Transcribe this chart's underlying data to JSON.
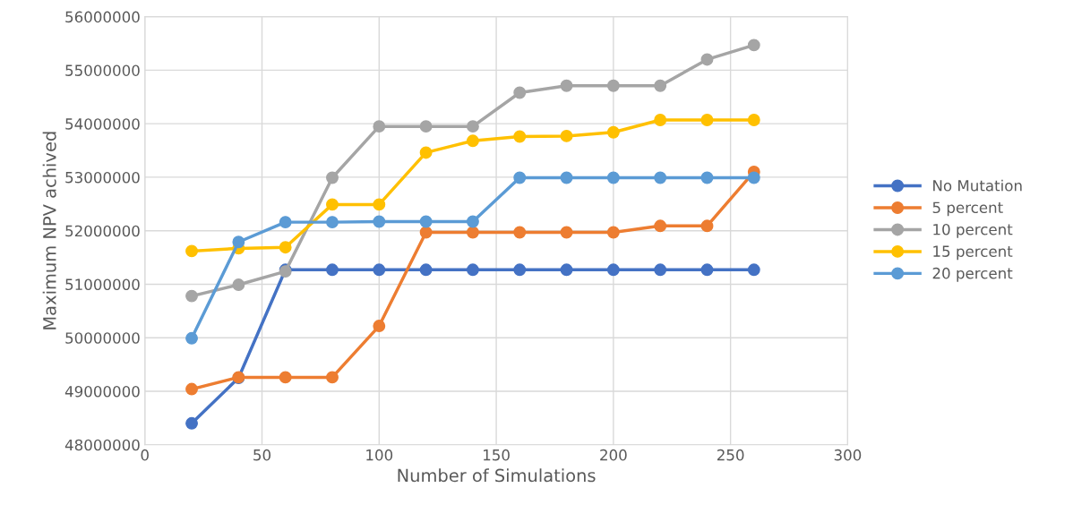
{
  "chart_data": {
    "type": "line",
    "xlabel": "Number of Simulations",
    "ylabel": "Maximum NPV achived",
    "x": [
      20,
      40,
      60,
      80,
      100,
      120,
      140,
      160,
      180,
      200,
      220,
      240,
      260
    ],
    "series": [
      {
        "name": "No Mutation",
        "color": "#4472c4",
        "values": [
          48400000,
          49250000,
          51270000,
          51270000,
          51270000,
          51270000,
          51270000,
          51270000,
          51270000,
          51270000,
          51270000,
          51270000,
          51270000
        ]
      },
      {
        "name": "5 percent",
        "color": "#ed7d31",
        "values": [
          49040000,
          49260000,
          49260000,
          49260000,
          50220000,
          51970000,
          51970000,
          51970000,
          51970000,
          51970000,
          52090000,
          52090000,
          53100000
        ]
      },
      {
        "name": "10 percent",
        "color": "#a5a5a5",
        "values": [
          50780000,
          50990000,
          51240000,
          52990000,
          53950000,
          53950000,
          53950000,
          54580000,
          54710000,
          54710000,
          54710000,
          55200000,
          55470000
        ]
      },
      {
        "name": "15 percent",
        "color": "#ffc000",
        "values": [
          51620000,
          51670000,
          51690000,
          52490000,
          52490000,
          53460000,
          53680000,
          53760000,
          53770000,
          53840000,
          54070000,
          54070000,
          54070000
        ]
      },
      {
        "name": "20 percent",
        "color": "#5b9bd5",
        "values": [
          49990000,
          51790000,
          52160000,
          52160000,
          52170000,
          52170000,
          52170000,
          52990000,
          52990000,
          52990000,
          52990000,
          52990000,
          52990000
        ]
      }
    ],
    "xlim": [
      0,
      300
    ],
    "xticks": [
      0,
      50,
      100,
      150,
      200,
      250,
      300
    ],
    "ylim": [
      48000000,
      56000000
    ],
    "yticks": [
      48000000,
      49000000,
      50000000,
      51000000,
      52000000,
      53000000,
      54000000,
      55000000,
      56000000
    ],
    "grid": true,
    "legend": "right",
    "marker": "circle",
    "line_style": "solid"
  }
}
